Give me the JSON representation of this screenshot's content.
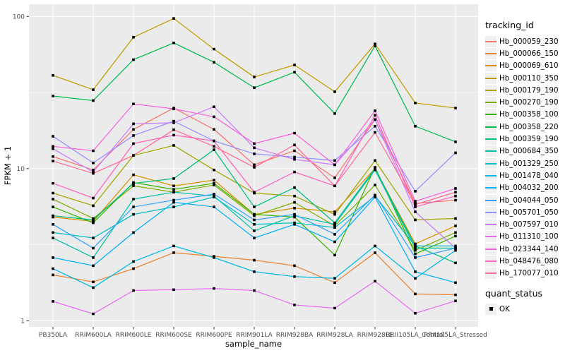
{
  "chart_data": {
    "type": "line",
    "xlabel": "sample_name",
    "ylabel": "FPKM + 1",
    "yscale": "log10",
    "ylim": [
      1,
      100
    ],
    "yticks": [
      1,
      10,
      100
    ],
    "grid": "on",
    "legend_position": "right",
    "panel_bg": "#EBEBEB",
    "grid_color": "#FFFFFF",
    "point_marker": "filled-square",
    "point_color": "#000000",
    "x_categories": [
      "PB350LA",
      "RRIM600LA",
      "RRIM600LE",
      "RRIM600SE",
      "RRIM600PE",
      "RRIM901LA",
      "RRIM928BA",
      "RRIM928LA",
      "RRIM928LE",
      "RRII105LA_Control",
      "RRII105LA_Stressed"
    ],
    "legend": {
      "tracking_title": "tracking_id",
      "quant_title": "quant_status",
      "quant_items": [
        {
          "label": "OK",
          "marker": "black-square"
        }
      ]
    },
    "series": [
      {
        "name": "Hb_000059_230",
        "color": "#F8766D",
        "values": [
          12.0,
          9.8,
          18.1,
          25.0,
          18.1,
          10.6,
          13.1,
          8.7,
          21.0,
          5.9,
          6.2
        ]
      },
      {
        "name": "Hb_000066_150",
        "color": "#EA8331",
        "values": [
          2.0,
          1.8,
          2.2,
          2.8,
          2.65,
          2.5,
          2.3,
          1.78,
          2.8,
          1.5,
          1.48
        ]
      },
      {
        "name": "Hb_000069_610",
        "color": "#D89000",
        "values": [
          4.8,
          4.5,
          9.1,
          7.7,
          8.4,
          5.0,
          5.5,
          5.2,
          10.0,
          3.2,
          4.2
        ]
      },
      {
        "name": "Hb_000110_350",
        "color": "#C09B00",
        "values": [
          41,
          33,
          73,
          97,
          61,
          40,
          48,
          32,
          66,
          27,
          25
        ]
      },
      {
        "name": "Hb_000179_190",
        "color": "#A3A500",
        "values": [
          6.9,
          5.7,
          12.2,
          14.2,
          9.8,
          6.9,
          6.6,
          5.0,
          11.3,
          4.6,
          4.7
        ]
      },
      {
        "name": "Hb_000270_190",
        "color": "#7CAE00",
        "values": [
          6.3,
          4.7,
          7.7,
          7.0,
          7.8,
          4.9,
          6.0,
          4.2,
          7.8,
          2.9,
          3.8
        ]
      },
      {
        "name": "Hb_000358_100",
        "color": "#39B600",
        "values": [
          5.6,
          4.4,
          8.1,
          7.3,
          8.0,
          5.0,
          4.8,
          2.7,
          10.2,
          2.75,
          3.6
        ]
      },
      {
        "name": "Hb_000358_220",
        "color": "#00BB4E",
        "values": [
          30,
          28,
          52,
          67,
          50,
          34,
          43,
          23,
          64,
          19,
          15
        ]
      },
      {
        "name": "Hb_000359_190",
        "color": "#00BF7D",
        "values": [
          4.9,
          4.6,
          8.0,
          8.6,
          13.3,
          5.6,
          7.5,
          4.4,
          10.0,
          3.1,
          2.4
        ]
      },
      {
        "name": "Hb_000684_350",
        "color": "#00C1A3",
        "values": [
          3.5,
          2.6,
          6.3,
          7.0,
          6.6,
          3.9,
          4.9,
          4.3,
          9.8,
          3.0,
          3.0
        ]
      },
      {
        "name": "Hb_001329_250",
        "color": "#00BFC4",
        "values": [
          3.8,
          3.5,
          5.0,
          5.6,
          6.5,
          4.3,
          4.4,
          4.1,
          6.6,
          3.1,
          3.1
        ]
      },
      {
        "name": "Hb_001478_040",
        "color": "#00BAE0",
        "values": [
          2.2,
          1.65,
          2.45,
          3.1,
          2.6,
          2.1,
          1.95,
          1.9,
          3.1,
          1.9,
          2.9
        ]
      },
      {
        "name": "Hb_004032_200",
        "color": "#00B0F6",
        "values": [
          2.6,
          2.3,
          3.8,
          6.0,
          5.6,
          3.5,
          4.3,
          3.3,
          6.5,
          2.1,
          1.78
        ]
      },
      {
        "name": "Hb_004044_050",
        "color": "#35A2FF",
        "values": [
          4.3,
          3.0,
          5.6,
          6.2,
          6.8,
          4.6,
          5.0,
          3.7,
          6.7,
          2.6,
          3.0
        ]
      },
      {
        "name": "Hb_005701_050",
        "color": "#9590FF",
        "values": [
          16.3,
          10.9,
          16.5,
          20.5,
          15.2,
          12.5,
          11.9,
          11.3,
          19.0,
          7.1,
          12.7
        ]
      },
      {
        "name": "Hb_007597_010",
        "color": "#C77CFF",
        "values": [
          13.5,
          9.5,
          19.7,
          20.0,
          25.5,
          13.7,
          11.5,
          10.6,
          21.0,
          5.2,
          3.0
        ]
      },
      {
        "name": "Hb_011310_100",
        "color": "#E76BF3",
        "values": [
          1.34,
          1.11,
          1.58,
          1.6,
          1.63,
          1.58,
          1.27,
          1.21,
          1.82,
          1.12,
          1.35
        ]
      },
      {
        "name": "Hb_023344_140",
        "color": "#FA62DB",
        "values": [
          14.0,
          13.1,
          26.6,
          24.7,
          21.9,
          14.6,
          17.1,
          10.6,
          24.0,
          6.1,
          7.4
        ]
      },
      {
        "name": "Hb_048476_080",
        "color": "#FF62BC",
        "values": [
          8.0,
          6.4,
          14.6,
          16.6,
          15.2,
          7.0,
          9.5,
          7.7,
          22.4,
          5.6,
          6.6
        ]
      },
      {
        "name": "Hb_170077_010",
        "color": "#FF6A98",
        "values": [
          11.2,
          9.3,
          12.2,
          18.0,
          14.0,
          10.2,
          14.3,
          7.7,
          17.3,
          5.8,
          7.0
        ]
      }
    ]
  }
}
